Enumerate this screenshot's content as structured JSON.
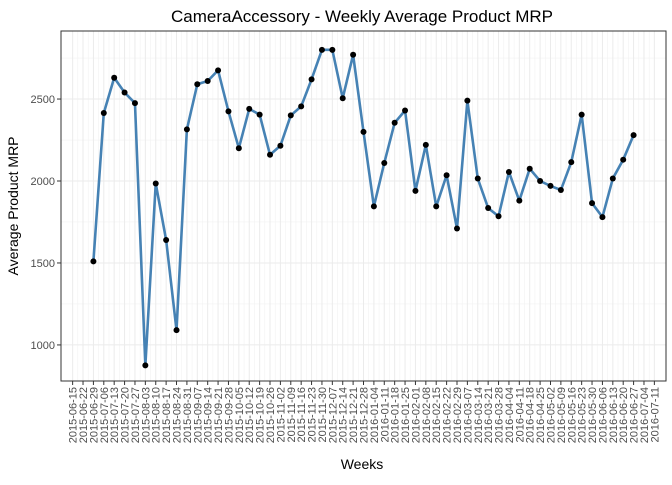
{
  "chart_data": {
    "type": "line",
    "title": "CameraAccessory - Weekly Average Product MRP",
    "xlabel": "Weeks",
    "ylabel": "Average Product MRP",
    "ylim": [
      780,
      2915
    ],
    "y_ticks": [
      1000,
      1500,
      2000,
      2500
    ],
    "x_tick_labels": [
      "2015-06-15",
      "2015-06-22",
      "2015-06-29",
      "2015-07-06",
      "2015-07-13",
      "2015-07-20",
      "2015-07-27",
      "2015-08-03",
      "2015-08-10",
      "2015-08-17",
      "2015-08-24",
      "2015-08-31",
      "2015-09-07",
      "2015-09-14",
      "2015-09-21",
      "2015-09-28",
      "2015-10-05",
      "2015-10-12",
      "2015-10-19",
      "2015-10-26",
      "2015-11-02",
      "2015-11-09",
      "2015-11-16",
      "2015-11-23",
      "2015-11-30",
      "2015-12-07",
      "2015-12-14",
      "2015-12-21",
      "2015-12-28",
      "2016-01-04",
      "2016-01-11",
      "2016-01-18",
      "2016-01-25",
      "2016-02-01",
      "2016-02-08",
      "2016-02-15",
      "2016-02-22",
      "2016-02-29",
      "2016-03-07",
      "2016-03-14",
      "2016-03-21",
      "2016-03-28",
      "2016-04-04",
      "2016-04-11",
      "2016-04-18",
      "2016-04-25",
      "2016-05-02",
      "2016-05-09",
      "2016-05-16",
      "2016-05-23",
      "2016-05-30",
      "2016-06-06",
      "2016-06-13",
      "2016-06-20",
      "2016-06-27",
      "2016-07-04",
      "2016-07-11"
    ],
    "x_range": [
      "2015-06-15",
      "2016-07-11"
    ],
    "x": [
      "2015-06-29",
      "2015-07-06",
      "2015-07-13",
      "2015-07-20",
      "2015-07-27",
      "2015-08-03",
      "2015-08-10",
      "2015-08-17",
      "2015-08-24",
      "2015-08-31",
      "2015-09-07",
      "2015-09-14",
      "2015-09-21",
      "2015-09-28",
      "2015-10-05",
      "2015-10-12",
      "2015-10-19",
      "2015-10-26",
      "2015-11-02",
      "2015-11-09",
      "2015-11-16",
      "2015-11-23",
      "2015-11-30",
      "2015-12-07",
      "2015-12-14",
      "2015-12-21",
      "2015-12-28",
      "2016-01-04",
      "2016-01-11",
      "2016-01-18",
      "2016-01-25",
      "2016-02-01",
      "2016-02-08",
      "2016-02-15",
      "2016-02-22",
      "2016-02-29",
      "2016-03-07",
      "2016-03-14",
      "2016-03-21",
      "2016-03-28",
      "2016-04-04",
      "2016-04-11",
      "2016-04-18",
      "2016-04-25",
      "2016-05-02",
      "2016-05-09",
      "2016-05-16",
      "2016-05-23",
      "2016-05-30",
      "2016-06-06",
      "2016-06-13",
      "2016-06-20",
      "2016-06-27"
    ],
    "series": [
      {
        "values": [
          1510,
          2415,
          2630,
          2540,
          2475,
          875,
          1985,
          1640,
          1090,
          2315,
          2590,
          2610,
          2675,
          2425,
          2200,
          2440,
          2405,
          2160,
          2215,
          2400,
          2455,
          2620,
          2800,
          2800,
          2505,
          2770,
          2300,
          1845,
          2110,
          2355,
          2430,
          1940,
          2220,
          1845,
          2035,
          1710,
          2490,
          2015,
          1835,
          1785,
          2055,
          1880,
          2075,
          2000,
          1970,
          1945,
          2115,
          2405,
          1865,
          1780,
          2015,
          2130,
          2280
        ],
        "color": "#4682b4"
      }
    ],
    "grid": true,
    "legend": "none",
    "point_color": "#000000"
  }
}
